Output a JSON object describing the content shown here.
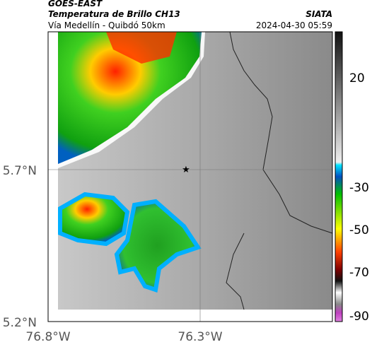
{
  "header": {
    "title": "GOES-EAST",
    "subtitle": "Temperatura de Brillo CH13",
    "location": "Vía Medellín - Quibdó 50km",
    "source": "SIATA",
    "datetime": "2024-04-30 05:59"
  },
  "map": {
    "lat_labels": [
      "5.7°N",
      "5.2°N"
    ],
    "lon_labels": [
      "76.8°W",
      "76.3°W"
    ]
  },
  "colorbar": {
    "ticks": [
      "20",
      "-30",
      "-50",
      "-70",
      "-90"
    ]
  }
}
